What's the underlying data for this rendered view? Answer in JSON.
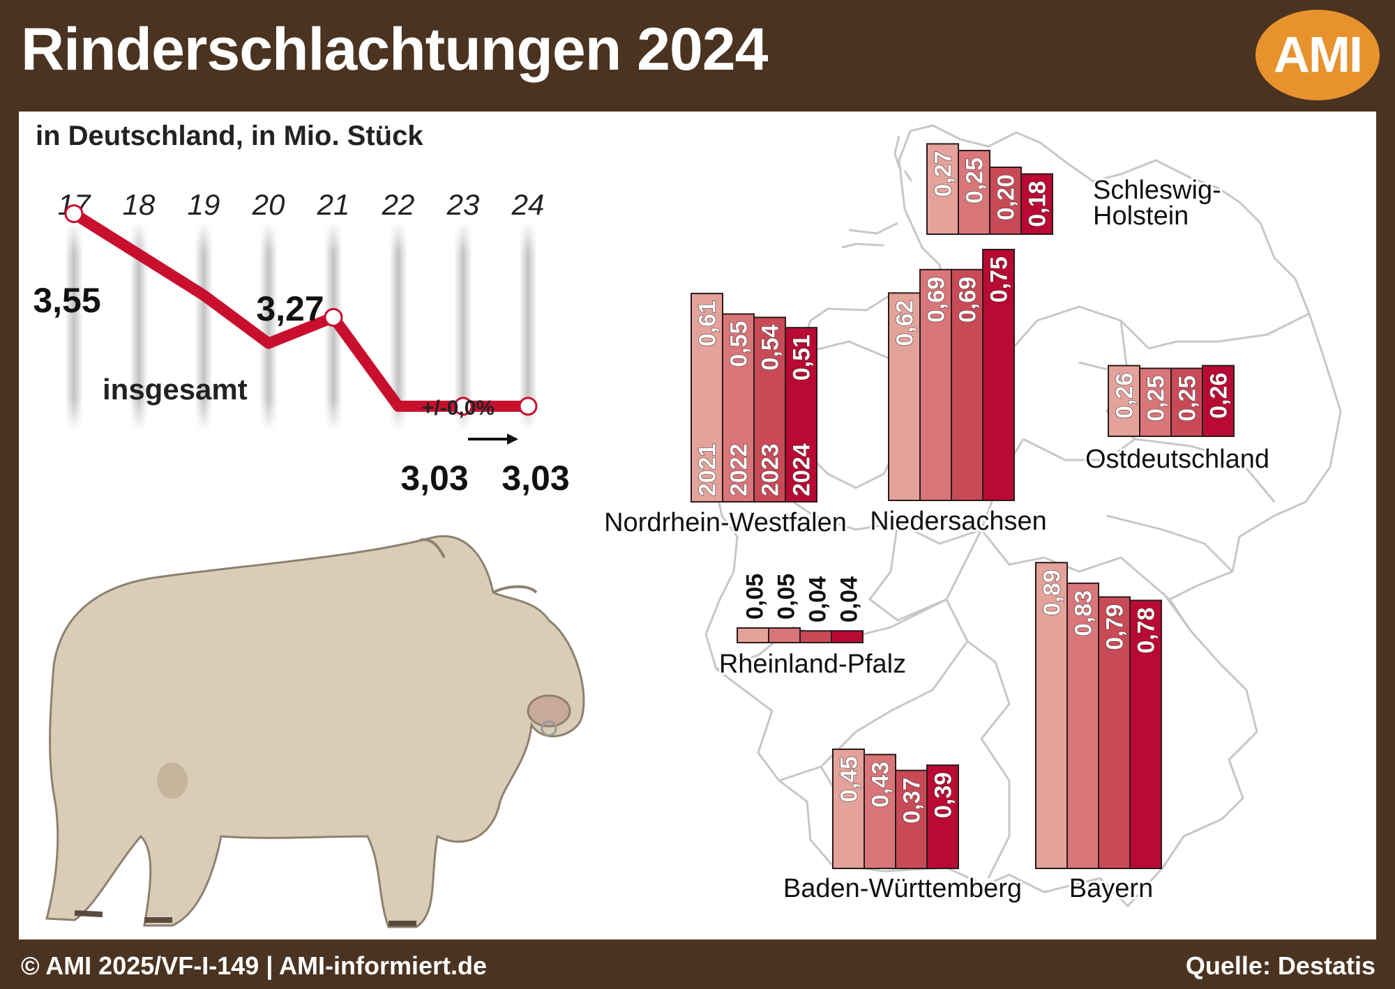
{
  "header": {
    "title": "Rinderschlachtungen 2024",
    "logo": "AMI"
  },
  "footer": {
    "copyright": "© AMI 2025/VF-I-149 | AMI-informiert.de",
    "source": "Quelle: Destatis"
  },
  "colors": {
    "background": "#4a3320",
    "logo": "#e8922e",
    "line": "#c8102e",
    "bar_2021": "#e3a29a",
    "bar_2022": "#d9767a",
    "bar_2023": "#c94a57",
    "bar_2024": "#b80a33"
  },
  "chart_data": [
    {
      "type": "line",
      "subtitle": "in Deutschland, in Mio. Stück",
      "x": [
        "17",
        "18",
        "19",
        "20",
        "21",
        "22",
        "23",
        "24"
      ],
      "series": [
        {
          "name": "insgesamt",
          "values": [
            3.55,
            3.44,
            3.33,
            3.2,
            3.27,
            3.03,
            3.03,
            3.03
          ]
        }
      ],
      "labels": [
        {
          "x": "17",
          "text": "3,55"
        },
        {
          "x": "21",
          "text": "3,27"
        },
        {
          "x": "23",
          "text": "3,03"
        },
        {
          "x": "24",
          "text": "3,03"
        }
      ],
      "annotation": "+/-0,0%",
      "ylim": [
        2.9,
        3.6
      ]
    },
    {
      "type": "bar",
      "categories": [
        "2021",
        "2022",
        "2023",
        "2024"
      ],
      "regions": [
        {
          "name": "Schleswig-Holstein",
          "name_lines": [
            "Schleswig-",
            "Holstein"
          ],
          "values": [
            0.27,
            0.25,
            0.2,
            0.18
          ],
          "labels": [
            "0,27",
            "0,25",
            "0,20",
            "0,18"
          ]
        },
        {
          "name": "Nordrhein-Westfalen",
          "name_lines": [
            "Nordrhein-Westfalen"
          ],
          "values": [
            0.61,
            0.55,
            0.54,
            0.51
          ],
          "labels": [
            "0,61",
            "0,55",
            "0,54",
            "0,51"
          ]
        },
        {
          "name": "Niedersachsen",
          "name_lines": [
            "Niedersachsen"
          ],
          "values": [
            0.62,
            0.69,
            0.69,
            0.75
          ],
          "labels": [
            "0,62",
            "0,69",
            "0,69",
            "0,75"
          ]
        },
        {
          "name": "Ostdeutschland",
          "name_lines": [
            "Ostdeutschland"
          ],
          "values": [
            0.26,
            0.25,
            0.25,
            0.26
          ],
          "labels": [
            "0,26",
            "0,25",
            "0,25",
            "0,26"
          ]
        },
        {
          "name": "Rheinland-Pfalz",
          "name_lines": [
            "Rheinland-Pfalz"
          ],
          "values": [
            0.05,
            0.05,
            0.04,
            0.04
          ],
          "labels": [
            "0,05",
            "0,05",
            "0,04",
            "0,04"
          ]
        },
        {
          "name": "Baden-Württemberg",
          "name_lines": [
            "Baden-Württemberg"
          ],
          "values": [
            0.45,
            0.43,
            0.37,
            0.39
          ],
          "labels": [
            "0,45",
            "0,43",
            "0,37",
            "0,39"
          ]
        },
        {
          "name": "Bayern",
          "name_lines": [
            "Bayern"
          ],
          "values": [
            0.89,
            0.83,
            0.79,
            0.78
          ],
          "labels": [
            "0,89",
            "0,83",
            "0,79",
            "0,78"
          ]
        }
      ]
    }
  ]
}
